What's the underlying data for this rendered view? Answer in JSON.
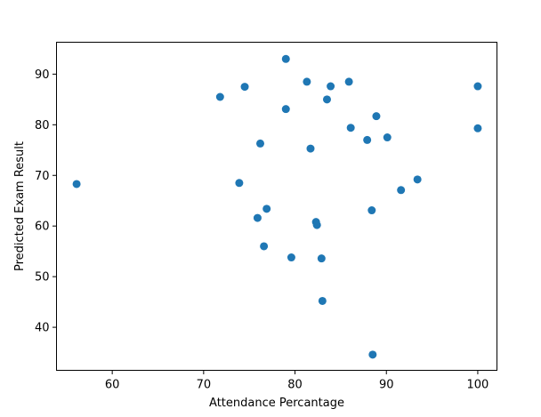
{
  "chart_data": {
    "type": "scatter",
    "title": "",
    "xlabel": "Attendance Percantage",
    "ylabel": "Predicted Exam Result",
    "xlim": [
      53.9,
      102.1
    ],
    "ylim": [
      31.5,
      96.3
    ],
    "xticks": [
      60,
      70,
      80,
      90,
      100
    ],
    "yticks": [
      40,
      50,
      60,
      70,
      80,
      90
    ],
    "grid": false,
    "legend": "none",
    "marker_color": "#1f77b4",
    "points": [
      {
        "x": 56.1,
        "y": 68.3
      },
      {
        "x": 71.8,
        "y": 85.5
      },
      {
        "x": 73.9,
        "y": 68.5
      },
      {
        "x": 74.5,
        "y": 87.5
      },
      {
        "x": 75.9,
        "y": 61.6
      },
      {
        "x": 76.2,
        "y": 76.3
      },
      {
        "x": 76.6,
        "y": 56.0
      },
      {
        "x": 76.9,
        "y": 63.4
      },
      {
        "x": 79.0,
        "y": 93.0
      },
      {
        "x": 79.0,
        "y": 83.1
      },
      {
        "x": 79.6,
        "y": 53.8
      },
      {
        "x": 81.3,
        "y": 88.5
      },
      {
        "x": 81.7,
        "y": 75.3
      },
      {
        "x": 82.3,
        "y": 60.8
      },
      {
        "x": 82.4,
        "y": 60.2
      },
      {
        "x": 82.9,
        "y": 53.6
      },
      {
        "x": 83.0,
        "y": 45.2
      },
      {
        "x": 83.5,
        "y": 85.0
      },
      {
        "x": 83.9,
        "y": 87.6
      },
      {
        "x": 85.9,
        "y": 88.5
      },
      {
        "x": 86.1,
        "y": 79.4
      },
      {
        "x": 87.9,
        "y": 77.0
      },
      {
        "x": 88.4,
        "y": 63.1
      },
      {
        "x": 88.5,
        "y": 34.6
      },
      {
        "x": 88.9,
        "y": 81.7
      },
      {
        "x": 90.1,
        "y": 77.5
      },
      {
        "x": 91.6,
        "y": 67.1
      },
      {
        "x": 93.4,
        "y": 69.2
      },
      {
        "x": 100.0,
        "y": 87.6
      },
      {
        "x": 100.0,
        "y": 79.3
      }
    ]
  }
}
